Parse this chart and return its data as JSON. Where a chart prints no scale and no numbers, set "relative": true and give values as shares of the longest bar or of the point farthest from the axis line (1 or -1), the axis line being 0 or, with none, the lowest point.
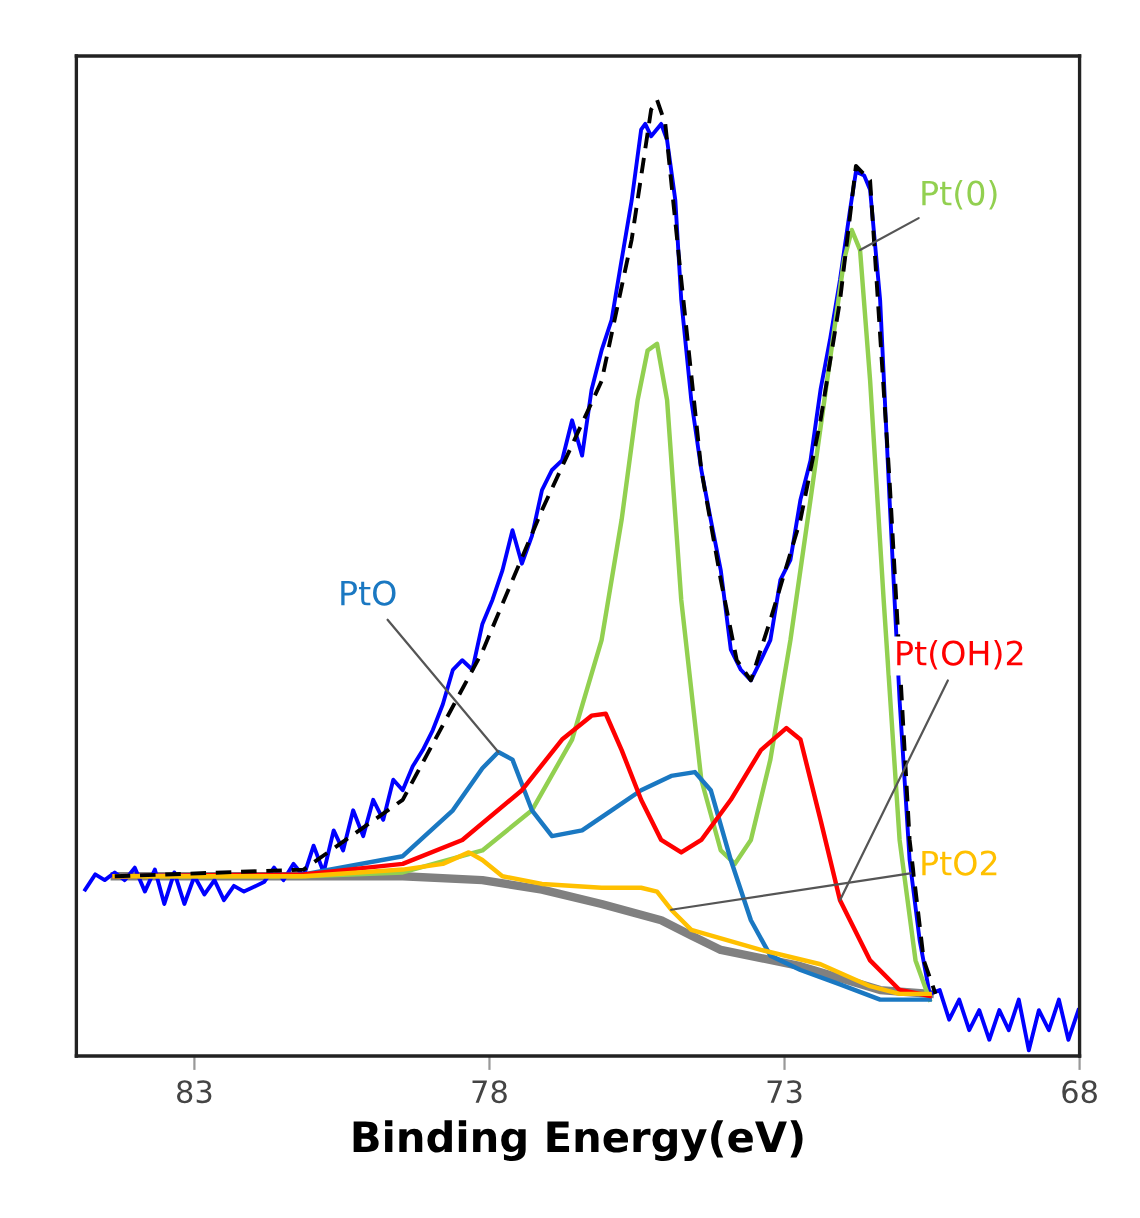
{
  "chart_data": {
    "type": "line",
    "relative": true,
    "xlabel": "Binding Energy(eV)",
    "xlim": [
      85,
      68
    ],
    "xticks": [
      83,
      78,
      73,
      68
    ],
    "series": [
      {
        "color": "#0000ff",
        "line_style": "solid",
        "x": [
          84.85,
          84.68,
          84.52,
          84.35,
          84.18,
          84.01,
          83.84,
          83.67,
          83.51,
          83.34,
          83.17,
          83.0,
          82.83,
          82.66,
          82.5,
          82.33,
          82.16,
          81.82,
          81.65,
          81.49,
          81.32,
          81.15,
          80.98,
          80.81,
          80.64,
          80.48,
          80.31,
          80.14,
          79.97,
          79.8,
          79.63,
          79.47,
          79.3,
          79.13,
          78.96,
          78.79,
          78.62,
          78.46,
          78.29,
          78.12,
          77.95,
          77.78,
          77.61,
          77.45,
          77.28,
          77.11,
          76.94,
          76.77,
          76.6,
          76.43,
          76.27,
          76.1,
          75.93,
          75.76,
          75.59,
          75.43,
          75.36,
          75.26,
          75.09,
          74.99,
          74.85,
          74.75,
          74.58,
          74.41,
          74.25,
          74.08,
          73.91,
          73.74,
          73.57,
          73.4,
          73.24,
          73.07,
          72.9,
          72.73,
          72.56,
          72.39,
          72.23,
          72.06,
          71.89,
          71.79,
          71.65,
          71.55,
          71.38,
          71.22,
          71.05,
          70.88,
          70.71,
          70.54,
          70.37,
          70.21,
          70.04,
          69.87,
          69.7,
          69.53,
          69.36,
          69.2,
          69.03,
          68.86,
          68.69,
          68.52,
          68.35,
          68.19,
          68.02
        ],
        "values": [
          0.174,
          0.19,
          0.184,
          0.192,
          0.184,
          0.197,
          0.172,
          0.195,
          0.159,
          0.192,
          0.159,
          0.188,
          0.169,
          0.184,
          0.163,
          0.178,
          0.172,
          0.182,
          0.197,
          0.184,
          0.201,
          0.188,
          0.22,
          0.192,
          0.236,
          0.215,
          0.257,
          0.23,
          0.268,
          0.247,
          0.289,
          0.278,
          0.303,
          0.32,
          0.341,
          0.368,
          0.404,
          0.414,
          0.404,
          0.452,
          0.477,
          0.508,
          0.55,
          0.515,
          0.544,
          0.592,
          0.613,
          0.623,
          0.665,
          0.628,
          0.697,
          0.738,
          0.77,
          0.833,
          0.895,
          0.969,
          0.975,
          0.962,
          0.975,
          0.958,
          0.895,
          0.791,
          0.686,
          0.613,
          0.561,
          0.508,
          0.425,
          0.404,
          0.393,
          0.414,
          0.435,
          0.498,
          0.519,
          0.582,
          0.623,
          0.697,
          0.749,
          0.812,
          0.885,
          0.925,
          0.921,
          0.906,
          0.791,
          0.582,
          0.372,
          0.205,
          0.121,
          0.065,
          0.069,
          0.038,
          0.059,
          0.027,
          0.048,
          0.017,
          0.048,
          0.027,
          0.059,
          0.006,
          0.048,
          0.027,
          0.059,
          0.017,
          0.048
        ]
      },
      {
        "color": "#000000",
        "line_style": "dashed",
        "x": [
          84.35,
          81.15,
          79.47,
          78.12,
          77.11,
          76.1,
          75.59,
          75.26,
          75.16,
          75.02,
          74.75,
          74.41,
          74.08,
          73.81,
          73.57,
          73.24,
          72.73,
          72.39,
          72.06,
          71.79,
          71.55,
          71.22,
          70.88,
          70.64,
          70.44
        ],
        "values": [
          0.188,
          0.195,
          0.268,
          0.423,
          0.571,
          0.706,
          0.854,
          0.99,
          1.0,
          0.975,
          0.812,
          0.613,
          0.498,
          0.414,
          0.393,
          0.456,
          0.561,
          0.665,
          0.79,
          0.931,
          0.916,
          0.602,
          0.226,
          0.1,
          0.065
        ]
      },
      {
        "color": "#808080",
        "line_style": "solid",
        "x": [
          84.35,
          81.15,
          79.47,
          78.12,
          77.11,
          76.1,
          75.09,
          74.58,
          74.08,
          72.73,
          71.38,
          70.54
        ],
        "values": [
          0.188,
          0.188,
          0.188,
          0.184,
          0.174,
          0.159,
          0.142,
          0.126,
          0.111,
          0.094,
          0.069,
          0.065
        ]
      },
      {
        "name": "Pt(0)",
        "color": "#92d050",
        "line_style": "solid",
        "x": [
          84.35,
          81.15,
          79.47,
          78.12,
          77.28,
          76.6,
          76.1,
          75.76,
          75.49,
          75.32,
          75.16,
          74.99,
          74.75,
          74.41,
          74.08,
          73.84,
          73.57,
          73.24,
          72.9,
          72.56,
          72.23,
          71.99,
          71.86,
          71.72,
          71.55,
          71.32,
          71.05,
          70.78,
          70.54
        ],
        "values": [
          0.188,
          0.188,
          0.192,
          0.215,
          0.257,
          0.331,
          0.435,
          0.561,
          0.686,
          0.738,
          0.745,
          0.686,
          0.477,
          0.289,
          0.215,
          0.201,
          0.226,
          0.31,
          0.435,
          0.582,
          0.728,
          0.833,
          0.864,
          0.843,
          0.707,
          0.477,
          0.226,
          0.1,
          0.059
        ]
      },
      {
        "name": "PtO",
        "color": "#1a78c2",
        "line_style": "solid",
        "x": [
          84.35,
          81.15,
          79.47,
          78.62,
          78.12,
          77.85,
          77.61,
          77.28,
          76.94,
          76.43,
          75.93,
          75.43,
          74.92,
          74.52,
          74.25,
          73.91,
          73.57,
          73.24,
          72.73,
          72.06,
          71.38,
          70.54
        ],
        "values": [
          0.188,
          0.19,
          0.209,
          0.257,
          0.301,
          0.318,
          0.31,
          0.257,
          0.23,
          0.236,
          0.257,
          0.278,
          0.293,
          0.297,
          0.278,
          0.205,
          0.142,
          0.105,
          0.09,
          0.075,
          0.059,
          0.059
        ]
      },
      {
        "name": "Pt(OH)2",
        "color": "#ff0000",
        "line_style": "solid",
        "x": [
          84.35,
          81.15,
          79.47,
          78.46,
          77.45,
          76.77,
          76.27,
          76.03,
          75.76,
          75.43,
          75.09,
          74.75,
          74.41,
          73.91,
          73.4,
          72.97,
          72.73,
          72.39,
          72.06,
          71.55,
          71.05,
          70.54
        ],
        "values": [
          0.188,
          0.19,
          0.201,
          0.226,
          0.278,
          0.331,
          0.356,
          0.358,
          0.32,
          0.268,
          0.226,
          0.213,
          0.226,
          0.268,
          0.32,
          0.343,
          0.331,
          0.247,
          0.163,
          0.1,
          0.069,
          0.063
        ]
      },
      {
        "name": "PtO2",
        "color": "#ffc000",
        "line_style": "solid",
        "x": [
          84.35,
          81.15,
          79.47,
          78.79,
          78.35,
          78.12,
          77.78,
          77.11,
          76.1,
          75.43,
          75.16,
          74.92,
          74.58,
          73.4,
          72.39,
          71.55,
          71.05,
          70.54
        ],
        "values": [
          0.188,
          0.188,
          0.195,
          0.201,
          0.213,
          0.205,
          0.188,
          0.18,
          0.176,
          0.176,
          0.172,
          0.153,
          0.132,
          0.111,
          0.096,
          0.073,
          0.065,
          0.065
        ]
      }
    ]
  }
}
